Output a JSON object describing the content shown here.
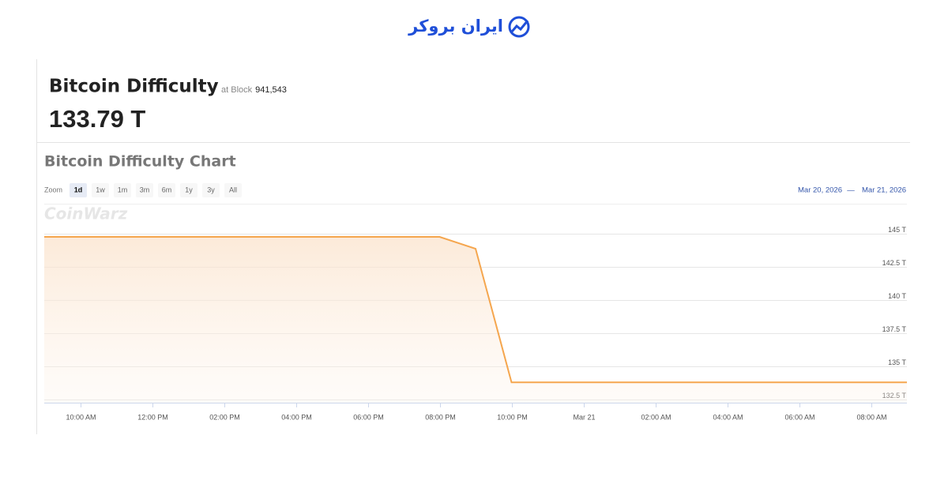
{
  "logo": "ایران بروکر",
  "header": {
    "title": "Bitcoin Difficulty",
    "block_prefix": "at Block",
    "block": "941,543",
    "value": "133.79 T"
  },
  "toolbar": {
    "zoom_label": "Zoom",
    "buttons": [
      "1d",
      "1w",
      "1m",
      "3m",
      "6m",
      "1y",
      "3y",
      "All"
    ],
    "active": "1d",
    "range_from": "Mar 20, 2026",
    "range_sep": "—",
    "range_to": "Mar 21, 2026"
  },
  "watermark": "CoinWarz",
  "chart_data": {
    "type": "area",
    "title": "Bitcoin Difficulty Chart",
    "x": [
      "2026-03-20T09:00",
      "2026-03-20T20:00",
      "2026-03-20T21:00",
      "2026-03-20T22:00",
      "2026-03-21T09:00"
    ],
    "values": [
      144.76,
      144.76,
      143.87,
      133.79,
      133.79
    ],
    "color": "#f5a64e",
    "xlim": [
      "2026-03-20T09:00",
      "2026-03-21T09:00"
    ],
    "xticks": [
      {
        "value": "2026-03-20T10:00",
        "label": "10:00 AM"
      },
      {
        "value": "2026-03-20T12:00",
        "label": "12:00 PM"
      },
      {
        "value": "2026-03-20T14:00",
        "label": "02:00 PM"
      },
      {
        "value": "2026-03-20T16:00",
        "label": "04:00 PM"
      },
      {
        "value": "2026-03-20T18:00",
        "label": "06:00 PM"
      },
      {
        "value": "2026-03-20T20:00",
        "label": "08:00 PM"
      },
      {
        "value": "2026-03-20T22:00",
        "label": "10:00 PM"
      },
      {
        "value": "2026-03-21T00:00",
        "label": "Mar 21"
      },
      {
        "value": "2026-03-21T02:00",
        "label": "02:00 AM"
      },
      {
        "value": "2026-03-21T04:00",
        "label": "04:00 AM"
      },
      {
        "value": "2026-03-21T06:00",
        "label": "06:00 AM"
      },
      {
        "value": "2026-03-21T08:00",
        "label": "08:00 AM"
      }
    ],
    "ylim": [
      132.26,
      147.26
    ],
    "yticks": [
      {
        "value": 132.5,
        "label": "132.5 T"
      },
      {
        "value": 135,
        "label": "135 T"
      },
      {
        "value": 137.5,
        "label": "137.5 T"
      },
      {
        "value": 140,
        "label": "140 T"
      },
      {
        "value": 142.5,
        "label": "142.5 T"
      },
      {
        "value": 145,
        "label": "145 T"
      }
    ],
    "grid": true
  }
}
